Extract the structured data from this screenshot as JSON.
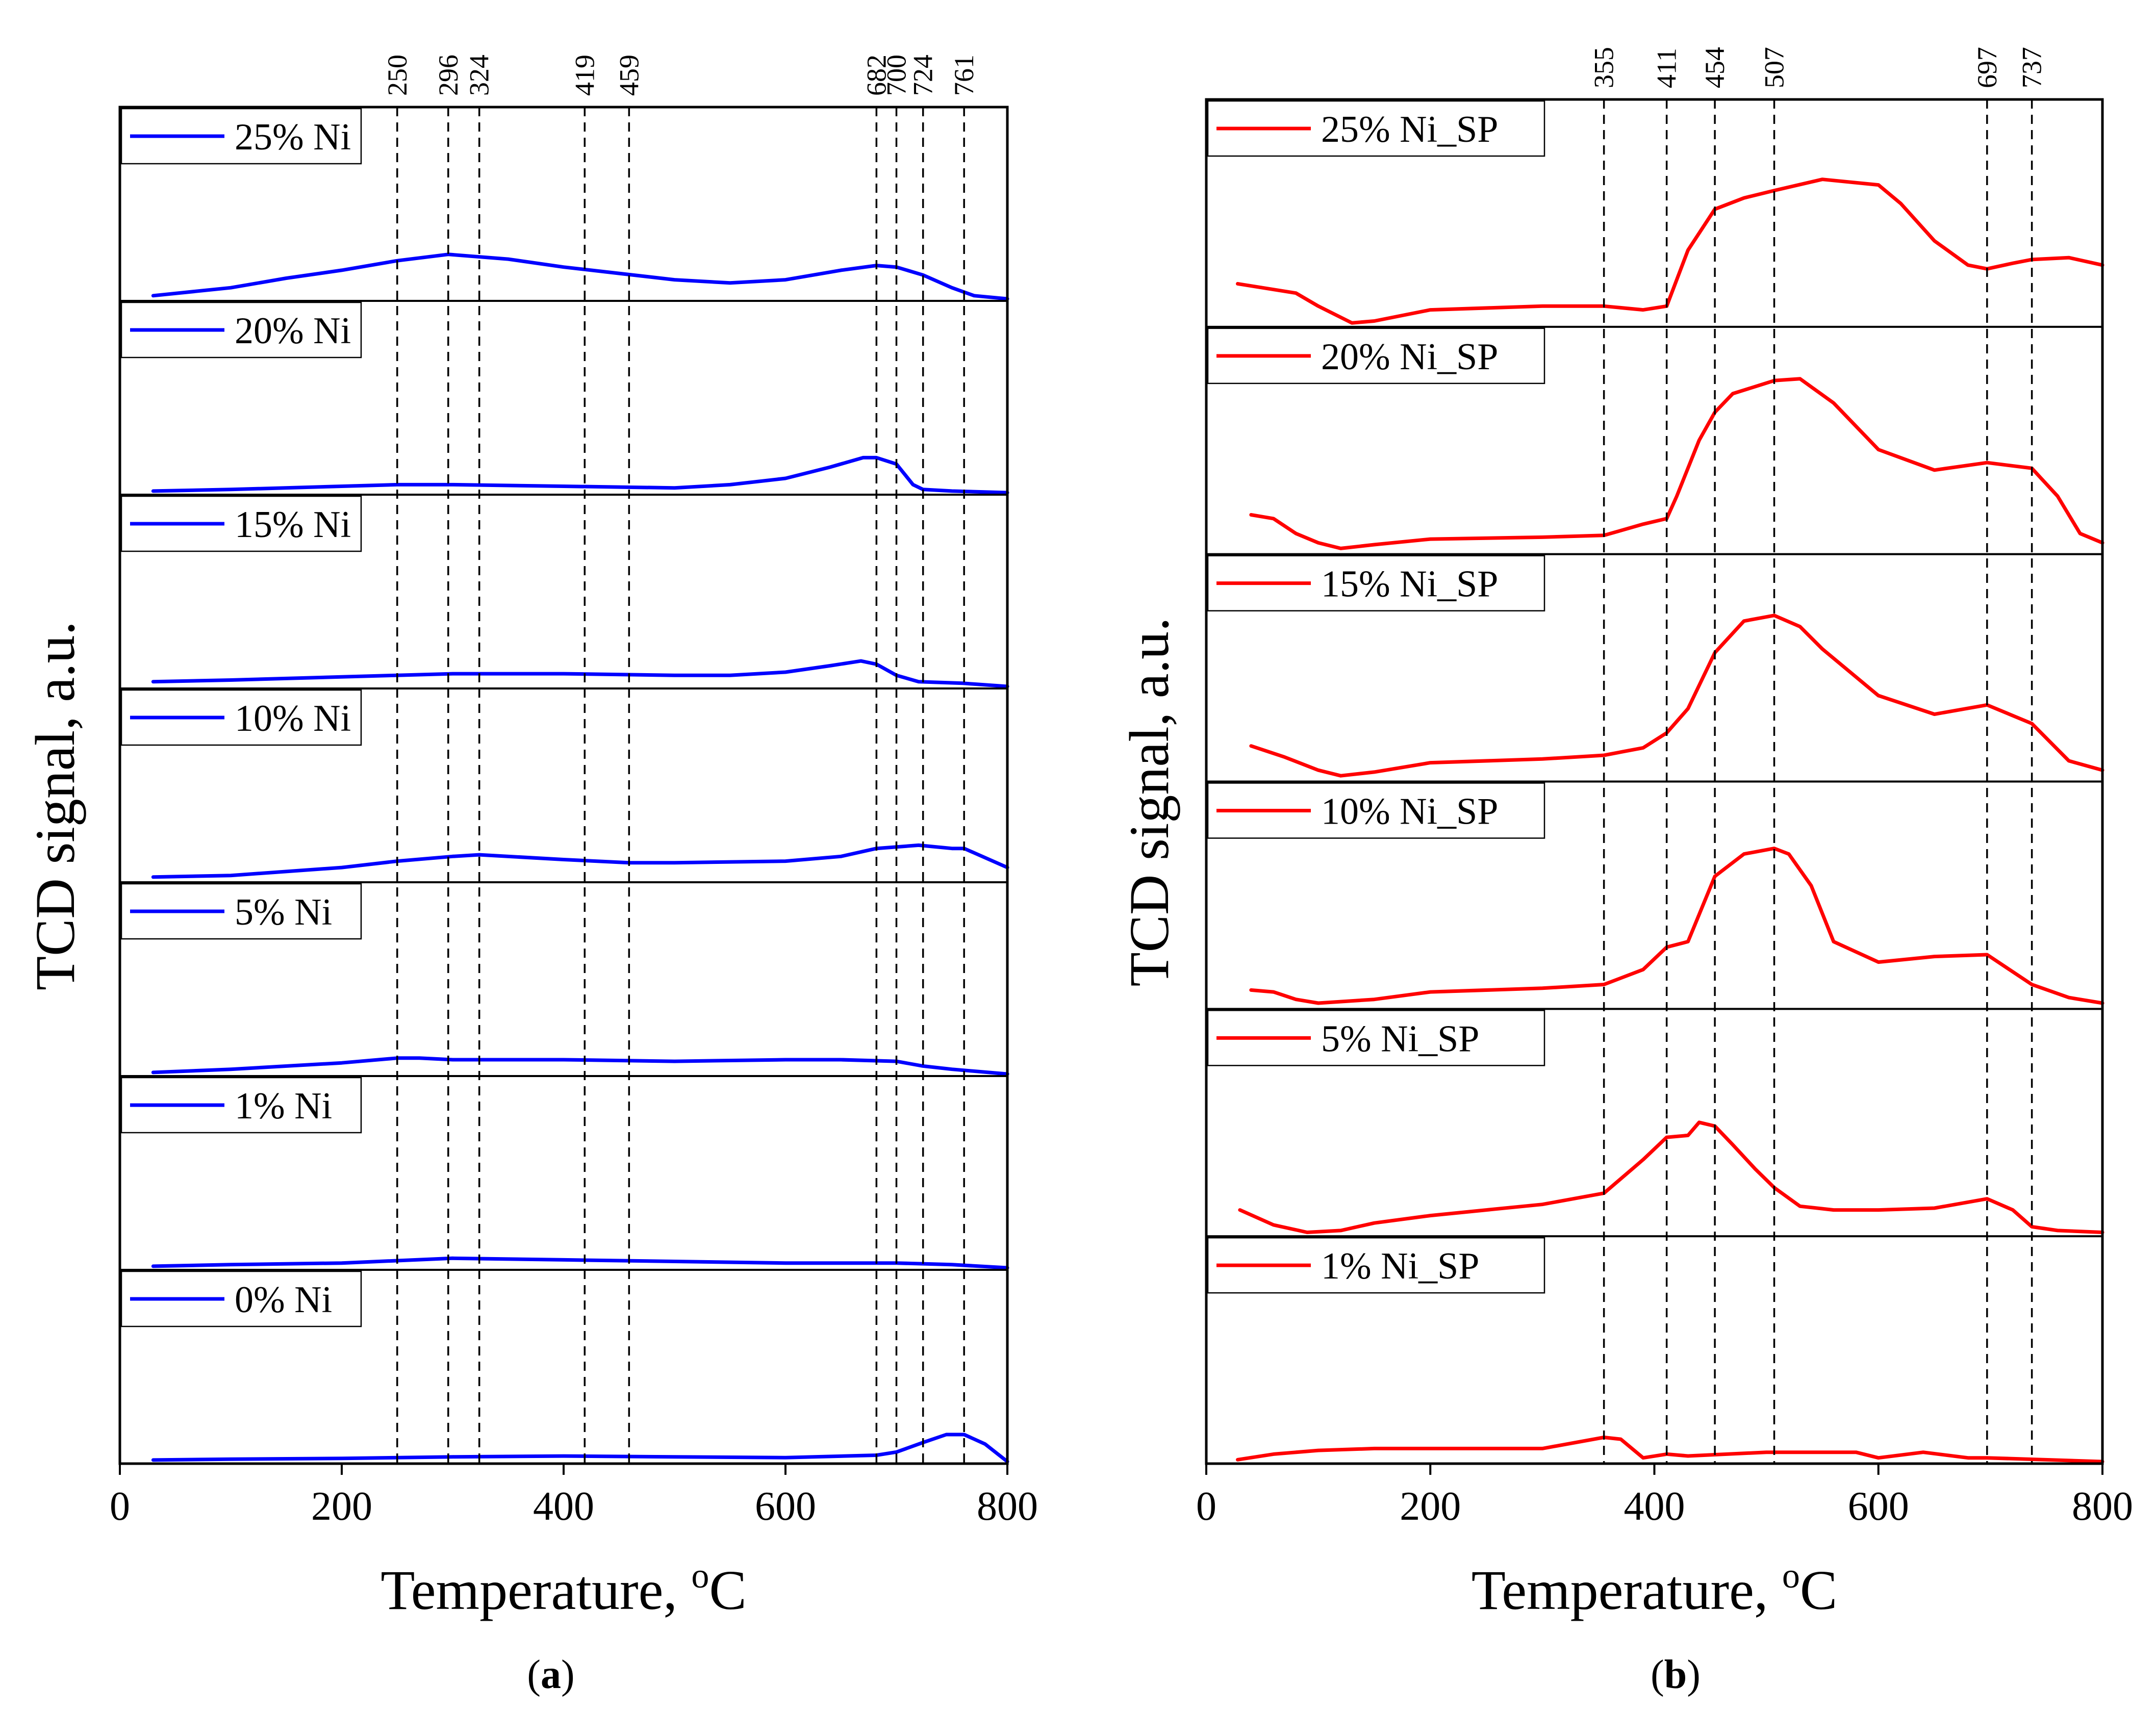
{
  "chart_data": [
    {
      "type": "line",
      "panel_label": "(a)",
      "panel_letter": "a",
      "xlabel": "Temperature, °C",
      "xlabel_main": "Temperature, ",
      "xlabel_sup": "o",
      "xlabel_unit": "C",
      "ylabel": "TCD signal, a.u.",
      "xlim": [
        0,
        800
      ],
      "xticks": [
        0,
        200,
        400,
        600,
        800
      ],
      "ref_lines": [
        250,
        296,
        324,
        419,
        459,
        682,
        700,
        724,
        761
      ],
      "color": "#0000ff",
      "series": [
        {
          "name": "25% Ni",
          "x": [
            30,
            100,
            150,
            200,
            250,
            296,
            350,
            400,
            450,
            500,
            550,
            600,
            650,
            682,
            700,
            724,
            750,
            770,
            800
          ],
          "y": [
            0.02,
            0.07,
            0.13,
            0.18,
            0.24,
            0.28,
            0.25,
            0.2,
            0.16,
            0.12,
            0.1,
            0.12,
            0.18,
            0.21,
            0.2,
            0.15,
            0.07,
            0.02,
            0.0
          ]
        },
        {
          "name": "20% Ni",
          "x": [
            30,
            100,
            200,
            250,
            300,
            400,
            500,
            550,
            600,
            640,
            670,
            682,
            700,
            715,
            724,
            750,
            800
          ],
          "y": [
            0.01,
            0.02,
            0.04,
            0.05,
            0.05,
            0.04,
            0.03,
            0.05,
            0.09,
            0.16,
            0.22,
            0.22,
            0.18,
            0.05,
            0.02,
            0.01,
            0.0
          ]
        },
        {
          "name": "15% Ni",
          "x": [
            30,
            100,
            200,
            250,
            300,
            400,
            500,
            550,
            600,
            640,
            668,
            682,
            700,
            720,
            760,
            800
          ],
          "y": [
            0.03,
            0.04,
            0.06,
            0.07,
            0.08,
            0.08,
            0.07,
            0.07,
            0.09,
            0.13,
            0.16,
            0.14,
            0.07,
            0.03,
            0.02,
            0.0
          ]
        },
        {
          "name": "10% Ni",
          "x": [
            30,
            100,
            200,
            250,
            300,
            324,
            400,
            459,
            500,
            600,
            650,
            682,
            720,
            750,
            761,
            800
          ],
          "y": [
            0.02,
            0.03,
            0.08,
            0.12,
            0.15,
            0.16,
            0.13,
            0.11,
            0.11,
            0.12,
            0.15,
            0.2,
            0.22,
            0.2,
            0.2,
            0.08
          ]
        },
        {
          "name": "5% Ni",
          "x": [
            30,
            100,
            200,
            250,
            270,
            300,
            400,
            500,
            600,
            650,
            700,
            724,
            750,
            800
          ],
          "y": [
            0.01,
            0.03,
            0.07,
            0.1,
            0.1,
            0.09,
            0.09,
            0.08,
            0.09,
            0.09,
            0.08,
            0.05,
            0.03,
            0.0
          ]
        },
        {
          "name": "1% Ni",
          "x": [
            30,
            100,
            200,
            300,
            400,
            500,
            600,
            700,
            750,
            800
          ],
          "y": [
            0.01,
            0.02,
            0.03,
            0.06,
            0.05,
            0.04,
            0.03,
            0.03,
            0.02,
            0.0
          ]
        },
        {
          "name": "0% Ni",
          "x": [
            30,
            100,
            200,
            300,
            400,
            500,
            600,
            682,
            700,
            724,
            745,
            761,
            780,
            800
          ],
          "y": [
            0.01,
            0.015,
            0.02,
            0.03,
            0.035,
            0.03,
            0.025,
            0.04,
            0.06,
            0.12,
            0.17,
            0.17,
            0.11,
            0.0
          ]
        }
      ]
    },
    {
      "type": "line",
      "panel_label": "(b)",
      "panel_letter": "b",
      "xlabel": "Temperature, °C",
      "xlabel_main": "Temperature, ",
      "xlabel_sup": "o",
      "xlabel_unit": "C",
      "ylabel": "TCD signal, a.u.",
      "xlim": [
        0,
        800
      ],
      "xticks": [
        0,
        200,
        400,
        600,
        800
      ],
      "ref_lines": [
        355,
        411,
        454,
        507,
        697,
        737
      ],
      "color": "#ff0000",
      "series": [
        {
          "name": "25% Ni_SP",
          "x": [
            28,
            80,
            100,
            130,
            150,
            200,
            300,
            355,
            390,
            411,
            430,
            454,
            480,
            507,
            550,
            600,
            620,
            650,
            680,
            697,
            720,
            737,
            770,
            800
          ],
          "y": [
            0.22,
            0.17,
            0.1,
            0.01,
            0.02,
            0.08,
            0.1,
            0.1,
            0.08,
            0.1,
            0.4,
            0.62,
            0.68,
            0.72,
            0.78,
            0.75,
            0.65,
            0.45,
            0.32,
            0.3,
            0.33,
            0.35,
            0.36,
            0.32
          ]
        },
        {
          "name": "20% Ni_SP",
          "x": [
            40,
            60,
            80,
            100,
            120,
            150,
            200,
            300,
            355,
            390,
            411,
            420,
            440,
            454,
            470,
            507,
            530,
            560,
            600,
            650,
            697,
            737,
            760,
            780,
            800
          ],
          "y": [
            0.2,
            0.18,
            0.1,
            0.05,
            0.02,
            0.04,
            0.07,
            0.08,
            0.09,
            0.15,
            0.18,
            0.3,
            0.6,
            0.75,
            0.85,
            0.92,
            0.93,
            0.8,
            0.55,
            0.44,
            0.48,
            0.45,
            0.3,
            0.1,
            0.05
          ]
        },
        {
          "name": "15% Ni_SP",
          "x": [
            40,
            70,
            100,
            120,
            150,
            200,
            300,
            355,
            390,
            411,
            430,
            454,
            480,
            507,
            530,
            550,
            600,
            650,
            697,
            737,
            770,
            800
          ],
          "y": [
            0.18,
            0.12,
            0.05,
            0.02,
            0.04,
            0.09,
            0.11,
            0.13,
            0.17,
            0.25,
            0.38,
            0.68,
            0.85,
            0.88,
            0.82,
            0.7,
            0.45,
            0.35,
            0.4,
            0.3,
            0.1,
            0.05
          ]
        },
        {
          "name": "10% Ni_SP",
          "x": [
            40,
            60,
            80,
            100,
            150,
            200,
            300,
            355,
            390,
            411,
            430,
            454,
            480,
            507,
            520,
            540,
            560,
            600,
            650,
            697,
            737,
            770,
            800
          ],
          "y": [
            0.09,
            0.08,
            0.04,
            0.02,
            0.04,
            0.08,
            0.1,
            0.12,
            0.2,
            0.32,
            0.35,
            0.7,
            0.82,
            0.85,
            0.82,
            0.65,
            0.35,
            0.24,
            0.27,
            0.28,
            0.12,
            0.05,
            0.02
          ]
        },
        {
          "name": "5% Ni_SP",
          "x": [
            30,
            60,
            90,
            120,
            150,
            200,
            250,
            300,
            355,
            390,
            411,
            430,
            440,
            454,
            470,
            490,
            507,
            530,
            560,
            600,
            650,
            697,
            720,
            737,
            760,
            800
          ],
          "y": [
            0.13,
            0.05,
            0.01,
            0.02,
            0.06,
            0.1,
            0.13,
            0.16,
            0.22,
            0.4,
            0.52,
            0.53,
            0.6,
            0.58,
            0.48,
            0.35,
            0.25,
            0.15,
            0.13,
            0.13,
            0.14,
            0.19,
            0.13,
            0.04,
            0.02,
            0.01
          ]
        },
        {
          "name": "1% Ni_SP",
          "x": [
            28,
            60,
            100,
            150,
            200,
            300,
            355,
            370,
            390,
            411,
            430,
            500,
            580,
            600,
            640,
            680,
            697,
            800
          ],
          "y": [
            0.01,
            0.04,
            0.06,
            0.07,
            0.07,
            0.07,
            0.13,
            0.12,
            0.02,
            0.04,
            0.03,
            0.05,
            0.05,
            0.02,
            0.05,
            0.02,
            0.02,
            0.0
          ]
        }
      ]
    }
  ]
}
